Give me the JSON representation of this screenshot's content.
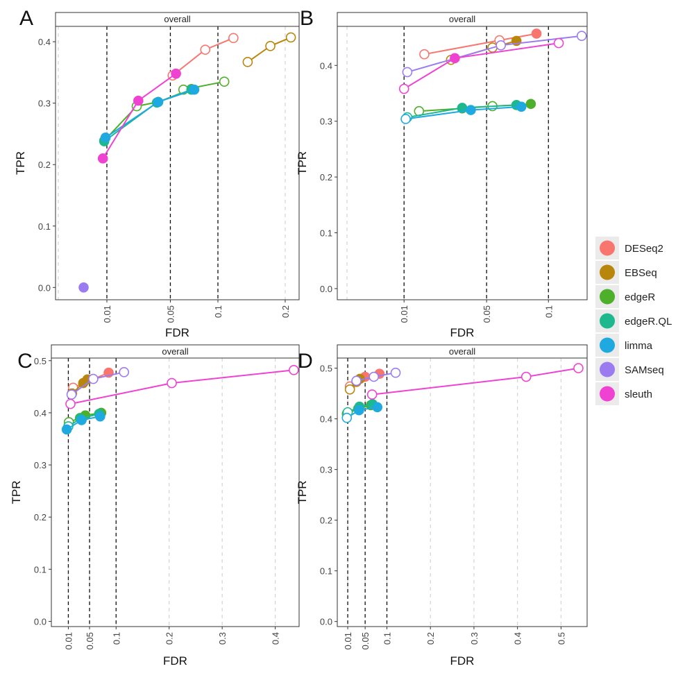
{
  "legend": {
    "items": [
      {
        "name": "DESeq2",
        "color": "#F8766D"
      },
      {
        "name": "EBSeq",
        "color": "#B8860B"
      },
      {
        "name": "edgeR",
        "color": "#4DAF2A"
      },
      {
        "name": "edgeR.QL",
        "color": "#1DB88D"
      },
      {
        "name": "limma",
        "color": "#1FA9E1"
      },
      {
        "name": "SAMseq",
        "color": "#9B7BF0"
      },
      {
        "name": "sleuth",
        "color": "#F042D2"
      }
    ]
  },
  "chart_data": [
    {
      "panel_label": "A",
      "type": "line",
      "strip_title": "overall",
      "xlabel": "FDR",
      "ylabel": "TPR",
      "x_scale": "sqrt",
      "xlim": [
        0.0,
        0.225
      ],
      "ylim": [
        -0.02,
        0.425
      ],
      "x_ticks": [
        0.01,
        0.05,
        0.1,
        0.2
      ],
      "x_tick_labels": [
        "0.01",
        "0.05",
        "0.1",
        "0.2"
      ],
      "y_ticks": [
        0.0,
        0.1,
        0.2,
        0.3,
        0.4
      ],
      "y_tick_labels": [
        "0.0",
        "0.1",
        "0.2",
        "0.3",
        "0.4"
      ],
      "threshold_lines": [
        0.01,
        0.05,
        0.1
      ],
      "series": [
        {
          "name": "DESeq2",
          "points": [
            [
              0.055,
              0.348,
              true
            ],
            [
              0.052,
              0.345,
              false
            ],
            [
              0.085,
              0.387,
              false
            ],
            [
              0.12,
              0.406,
              false
            ]
          ]
        },
        {
          "name": "EBSeq",
          "points": [
            [
              0.14,
              0.367,
              false
            ],
            [
              0.175,
              0.393,
              false
            ],
            [
              0.21,
              0.407,
              false
            ]
          ]
        },
        {
          "name": "edgeR",
          "points": [
            [
              0.009,
              0.239,
              true
            ],
            [
              0.025,
              0.295,
              false
            ],
            [
              0.04,
              0.302,
              true
            ],
            [
              0.07,
              0.323,
              true
            ],
            [
              0.062,
              0.322,
              false
            ],
            [
              0.108,
              0.335,
              false
            ]
          ]
        },
        {
          "name": "edgeR.QL",
          "points": [
            [
              0.009,
              0.238,
              true
            ],
            [
              0.039,
              0.301,
              true
            ],
            [
              0.07,
              0.322,
              true
            ]
          ]
        },
        {
          "name": "limma",
          "points": [
            [
              0.0095,
              0.244,
              true
            ],
            [
              0.04,
              0.302,
              true
            ],
            [
              0.073,
              0.322,
              true
            ]
          ]
        },
        {
          "name": "SAMseq",
          "points": [
            [
              0.003,
              0.0,
              true
            ]
          ]
        },
        {
          "name": "sleuth",
          "points": [
            [
              0.0085,
              0.21,
              true
            ],
            [
              0.026,
              0.304,
              true
            ],
            [
              0.055,
              0.348,
              true
            ]
          ]
        }
      ]
    },
    {
      "panel_label": "B",
      "type": "line",
      "strip_title": "overall",
      "xlabel": "FDR",
      "ylabel": "TPR",
      "x_scale": "sqrt",
      "xlim": [
        0.0,
        0.14
      ],
      "ylim": [
        -0.02,
        0.47
      ],
      "x_ticks": [
        0.01,
        0.05,
        0.1
      ],
      "x_tick_labels": [
        "0.01",
        "0.05",
        "0.1"
      ],
      "y_ticks": [
        0.0,
        0.1,
        0.2,
        0.3,
        0.4
      ],
      "y_tick_labels": [
        "0.0",
        "0.1",
        "0.2",
        "0.3",
        "0.4"
      ],
      "threshold_lines": [
        0.01,
        0.05,
        0.1
      ],
      "series": [
        {
          "name": "DESeq2",
          "points": [
            [
              0.017,
              0.42,
              false
            ],
            [
              0.059,
              0.445,
              false
            ],
            [
              0.089,
              0.457,
              true
            ]
          ]
        },
        {
          "name": "EBSeq",
          "points": [
            [
              0.029,
              0.41,
              false
            ],
            [
              0.054,
              0.432,
              false
            ],
            [
              0.072,
              0.444,
              true
            ]
          ]
        },
        {
          "name": "edgeR",
          "points": [
            [
              0.015,
              0.318,
              false
            ],
            [
              0.035,
              0.323,
              true
            ],
            [
              0.054,
              0.327,
              false
            ],
            [
              0.072,
              0.329,
              true
            ],
            [
              0.084,
              0.331,
              true
            ]
          ]
        },
        {
          "name": "edgeR.QL",
          "points": [
            [
              0.011,
              0.307,
              false
            ],
            [
              0.035,
              0.324,
              true
            ],
            [
              0.072,
              0.329,
              true
            ]
          ]
        },
        {
          "name": "limma",
          "points": [
            [
              0.0105,
              0.304,
              false
            ],
            [
              0.04,
              0.32,
              true
            ],
            [
              0.076,
              0.326,
              true
            ]
          ]
        },
        {
          "name": "SAMseq",
          "points": [
            [
              0.011,
              0.388,
              false
            ],
            [
              0.06,
              0.436,
              false
            ],
            [
              0.134,
              0.453,
              false
            ]
          ]
        },
        {
          "name": "sleuth",
          "points": [
            [
              0.01,
              0.358,
              false
            ],
            [
              0.031,
              0.413,
              true
            ],
            [
              0.11,
              0.44,
              false
            ]
          ]
        }
      ]
    },
    {
      "panel_label": "C",
      "type": "line",
      "strip_title": "overall",
      "xlabel": "FDR",
      "ylabel": "TPR",
      "x_scale": "linear",
      "xlim": [
        -0.022,
        0.445
      ],
      "ylim": [
        -0.01,
        0.505
      ],
      "x_ticks": [
        0.01,
        0.05,
        0.1,
        0.2,
        0.3,
        0.4
      ],
      "x_tick_labels": [
        "0.01",
        "0.05",
        "0.1",
        "0.2",
        "0.3",
        "0.4"
      ],
      "y_ticks": [
        0.0,
        0.1,
        0.2,
        0.3,
        0.4,
        0.5
      ],
      "y_tick_labels": [
        "0.0",
        "0.1",
        "0.2",
        "0.3",
        "0.4",
        "0.5"
      ],
      "threshold_lines": [
        0.01,
        0.05,
        0.1
      ],
      "series": [
        {
          "name": "DESeq2",
          "points": [
            [
              0.019,
              0.448,
              false
            ],
            [
              0.086,
              0.477,
              true
            ]
          ]
        },
        {
          "name": "EBSeq",
          "points": [
            [
              0.017,
              0.437,
              false
            ],
            [
              0.038,
              0.457,
              true
            ],
            [
              0.046,
              0.464,
              true
            ]
          ]
        },
        {
          "name": "edgeR",
          "points": [
            [
              0.011,
              0.382,
              false
            ],
            [
              0.032,
              0.39,
              true
            ],
            [
              0.042,
              0.395,
              true
            ],
            [
              0.072,
              0.4,
              true
            ]
          ]
        },
        {
          "name": "edgeR.QL",
          "points": [
            [
              0.01,
              0.374,
              false
            ],
            [
              0.033,
              0.389,
              true
            ],
            [
              0.068,
              0.398,
              true
            ]
          ]
        },
        {
          "name": "limma",
          "points": [
            [
              0.007,
              0.368,
              true
            ],
            [
              0.035,
              0.386,
              true
            ],
            [
              0.07,
              0.393,
              true
            ]
          ]
        },
        {
          "name": "SAMseq",
          "points": [
            [
              0.016,
              0.435,
              false
            ],
            [
              0.057,
              0.465,
              false
            ],
            [
              0.115,
              0.478,
              false
            ]
          ]
        },
        {
          "name": "sleuth",
          "points": [
            [
              0.014,
              0.417,
              false
            ],
            [
              0.205,
              0.457,
              false
            ],
            [
              0.435,
              0.482,
              false
            ]
          ]
        }
      ]
    },
    {
      "panel_label": "D",
      "type": "line",
      "strip_title": "overall",
      "xlabel": "FDR",
      "ylabel": "TPR",
      "x_scale": "linear",
      "xlim": [
        -0.014,
        0.56
      ],
      "ylim": [
        -0.01,
        0.52
      ],
      "x_ticks": [
        0.01,
        0.05,
        0.1,
        0.2,
        0.3,
        0.4,
        0.5
      ],
      "x_tick_labels": [
        "0.01",
        "0.05",
        "0.1",
        "0.2",
        "0.3",
        "0.4",
        "0.5"
      ],
      "y_ticks": [
        0.0,
        0.1,
        0.2,
        0.3,
        0.4,
        0.5
      ],
      "y_tick_labels": [
        "0.0",
        "0.1",
        "0.2",
        "0.3",
        "0.4",
        "0.5"
      ],
      "threshold_lines": [
        0.01,
        0.05,
        0.1
      ],
      "series": [
        {
          "name": "DESeq2",
          "points": [
            [
              0.015,
              0.464,
              false
            ],
            [
              0.05,
              0.483,
              true
            ],
            [
              0.083,
              0.489,
              true
            ]
          ]
        },
        {
          "name": "EBSeq",
          "points": [
            [
              0.015,
              0.458,
              false
            ],
            [
              0.03,
              0.473,
              true
            ],
            [
              0.038,
              0.479,
              true
            ]
          ]
        },
        {
          "name": "edgeR",
          "points": [
            [
              0.008,
              0.41,
              false
            ],
            [
              0.034,
              0.42,
              true
            ],
            [
              0.063,
              0.427,
              true
            ]
          ]
        },
        {
          "name": "edgeR.QL",
          "points": [
            [
              0.01,
              0.413,
              false
            ],
            [
              0.037,
              0.424,
              true
            ],
            [
              0.067,
              0.429,
              true
            ]
          ]
        },
        {
          "name": "limma",
          "points": [
            [
              0.008,
              0.402,
              false
            ],
            [
              0.036,
              0.417,
              true
            ],
            [
              0.078,
              0.423,
              true
            ]
          ]
        },
        {
          "name": "SAMseq",
          "points": [
            [
              0.03,
              0.475,
              false
            ],
            [
              0.07,
              0.483,
              false
            ],
            [
              0.12,
              0.491,
              false
            ]
          ]
        },
        {
          "name": "sleuth",
          "points": [
            [
              0.066,
              0.448,
              false
            ],
            [
              0.42,
              0.483,
              false
            ],
            [
              0.54,
              0.5,
              false
            ]
          ]
        }
      ]
    }
  ]
}
